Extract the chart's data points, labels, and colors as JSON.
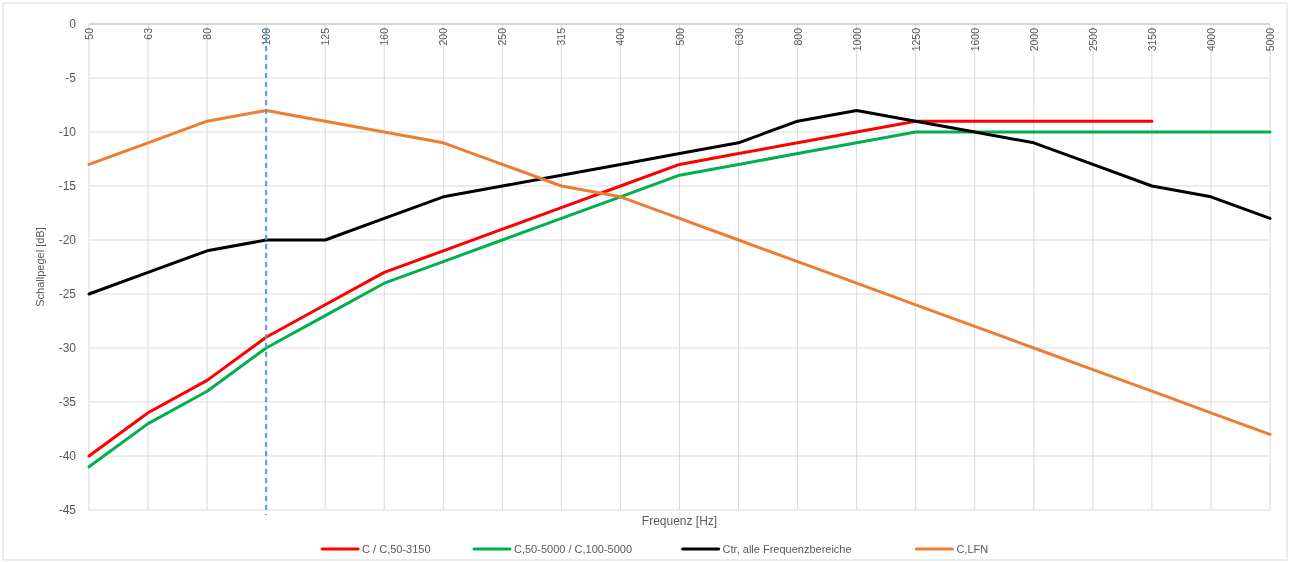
{
  "chart_data": {
    "type": "line",
    "xlabel": "Frequenz [Hz]",
    "ylabel": "Schallpegel [dB]",
    "categories": [
      "50",
      "63",
      "80",
      "100",
      "125",
      "160",
      "200",
      "250",
      "315",
      "400",
      "500",
      "630",
      "800",
      "1000",
      "1250",
      "1600",
      "2000",
      "2500",
      "3150",
      "4000",
      "5000"
    ],
    "ylim": [
      -45,
      0
    ],
    "yticks": [
      -45,
      -40,
      -35,
      -30,
      -25,
      -20,
      -15,
      -10,
      -5,
      0
    ],
    "grid": true,
    "legend": "bottom",
    "ref_lines": [
      {
        "axis": "x",
        "value": "100",
        "color": "#5b9bd5",
        "line_style": "dashed"
      }
    ],
    "series": [
      {
        "name": "C / C,50-3150",
        "color": "#ff0000",
        "values": [
          -40,
          -36,
          -33,
          -29,
          -26,
          -23,
          -21,
          -19,
          -17,
          -15,
          -13,
          -12,
          -11,
          -10,
          -9,
          -9,
          -9,
          -9,
          -9,
          null,
          null
        ]
      },
      {
        "name": "C,50-5000 / C,100-5000",
        "color": "#00b050",
        "values": [
          -41,
          -37,
          -34,
          -30,
          -27,
          -24,
          -22,
          -20,
          -18,
          -16,
          -14,
          -13,
          -12,
          -11,
          -10,
          -10,
          -10,
          -10,
          -10,
          -10,
          -10
        ]
      },
      {
        "name": "Ctr, alle Frequenzbereiche",
        "color": "#000000",
        "values": [
          -25,
          -23,
          -21,
          -20,
          -20,
          -18,
          -16,
          -15,
          -14,
          -13,
          -12,
          -11,
          -9,
          -8,
          -9,
          -10,
          -11,
          -13,
          -15,
          -16,
          -18
        ]
      },
      {
        "name": "C,LFN",
        "color": "#ed7d31",
        "values": [
          -13,
          -11,
          -9,
          -8,
          -9,
          -10,
          -11,
          -13,
          -15,
          -16,
          -18,
          -20,
          -22,
          -24,
          -26,
          -28,
          -30,
          -32,
          -34,
          -36,
          -38
        ]
      }
    ]
  }
}
